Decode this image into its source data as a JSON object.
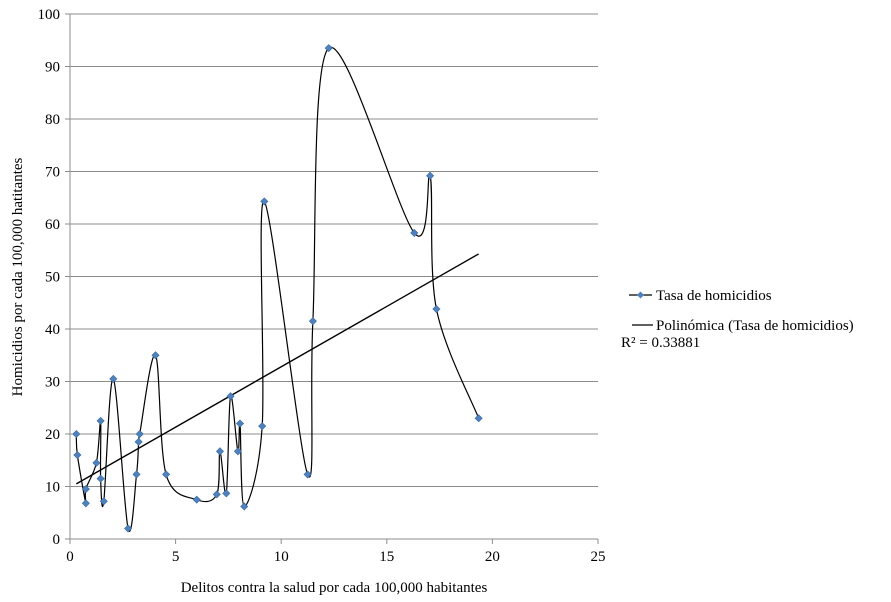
{
  "chart_data": {
    "type": "scatter",
    "xlabel": "Delitos contra la salud por cada 100,000 habitantes",
    "ylabel": "Homicidios por cada  100,000 hatitantes",
    "xlim": [
      0,
      25
    ],
    "ylim": [
      0,
      100
    ],
    "x_ticks": [
      0,
      5,
      10,
      15,
      20,
      25
    ],
    "y_ticks": [
      0,
      10,
      20,
      30,
      40,
      50,
      60,
      70,
      80,
      90,
      100
    ],
    "grid": "horizontal",
    "legend_position": "right",
    "series": [
      {
        "name": "Tasa de homicidios",
        "color": "#4F81BD",
        "line_color": "#000000",
        "smooth_line": true,
        "points": [
          [
            0.3,
            20.0
          ],
          [
            0.35,
            16.0
          ],
          [
            0.75,
            6.8
          ],
          [
            0.75,
            9.5
          ],
          [
            1.25,
            14.5
          ],
          [
            1.45,
            22.5
          ],
          [
            1.45,
            11.5
          ],
          [
            1.6,
            7.2
          ],
          [
            2.05,
            30.5
          ],
          [
            2.75,
            2.0
          ],
          [
            3.15,
            12.3
          ],
          [
            3.25,
            18.5
          ],
          [
            3.3,
            20.0
          ],
          [
            4.05,
            35.0
          ],
          [
            4.55,
            12.3
          ],
          [
            6.0,
            7.5
          ],
          [
            6.95,
            8.5
          ],
          [
            7.1,
            16.7
          ],
          [
            7.4,
            8.7
          ],
          [
            7.6,
            27.2
          ],
          [
            7.95,
            16.7
          ],
          [
            8.05,
            22.0
          ],
          [
            8.25,
            6.2
          ],
          [
            9.1,
            21.5
          ],
          [
            9.2,
            64.3
          ],
          [
            11.25,
            12.3
          ],
          [
            11.5,
            41.5
          ],
          [
            12.25,
            93.5
          ],
          [
            16.3,
            58.3
          ],
          [
            17.05,
            69.2
          ],
          [
            17.35,
            43.8
          ],
          [
            19.35,
            23.0
          ]
        ]
      },
      {
        "name": "Polinómica  (Tasa de homicidios)",
        "type": "trendline",
        "color": "#000000",
        "x_range": [
          0.3,
          19.35
        ],
        "y_at_range": [
          10.5,
          54.3
        ],
        "r2_label": "R² = 0.33881"
      }
    ]
  }
}
